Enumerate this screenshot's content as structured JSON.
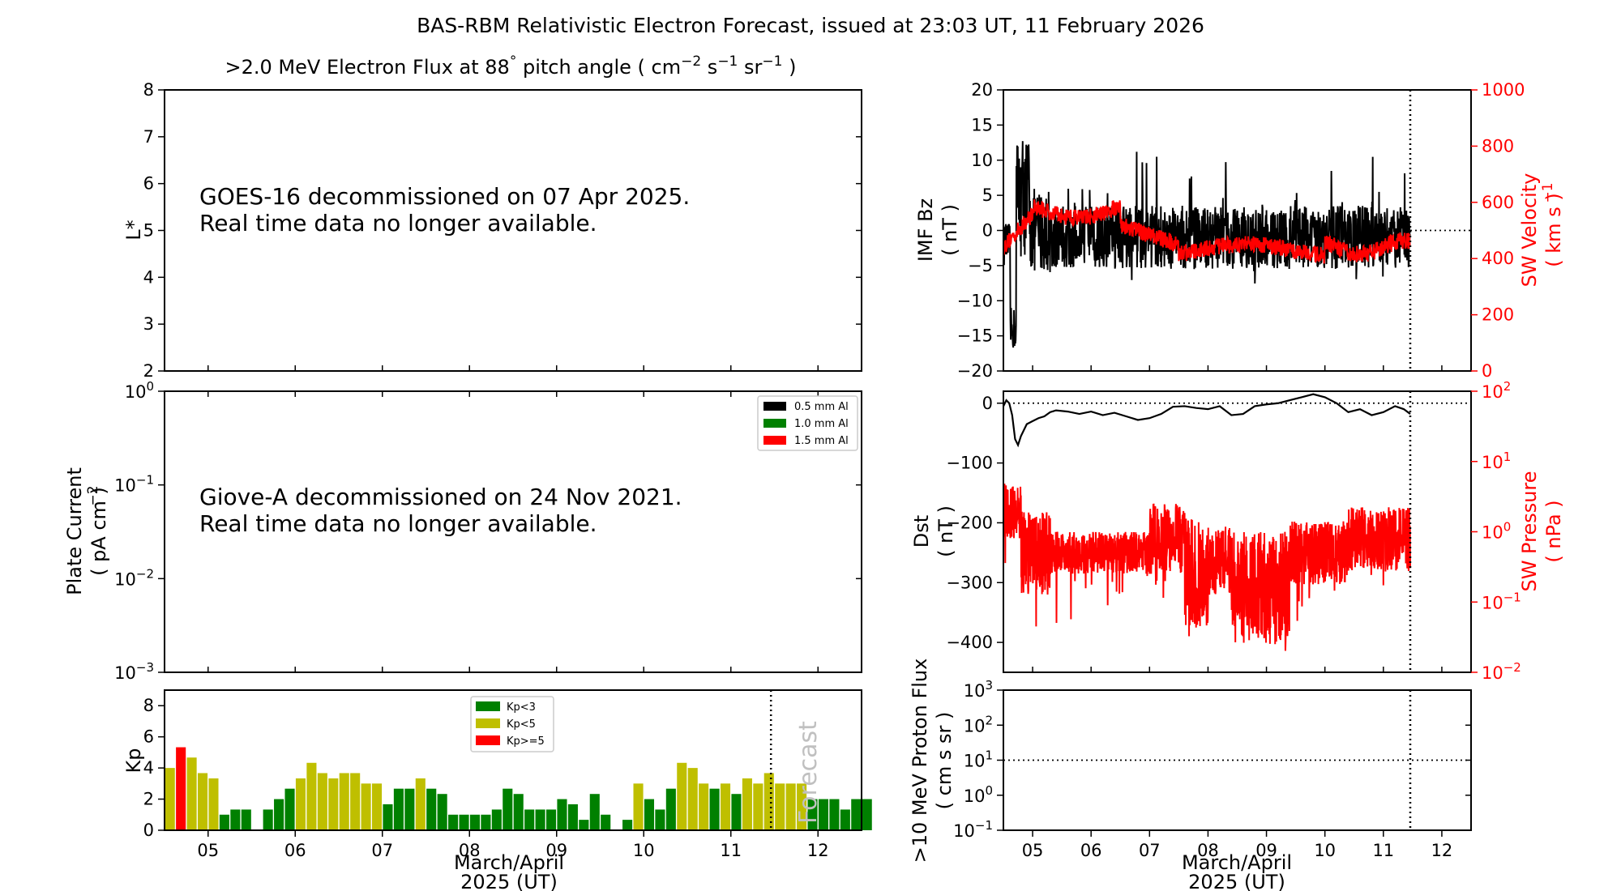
{
  "title": "BAS-RBM Relativistic Electron Forecast, issued at 23:03 UT, 11 February 2026",
  "colors": {
    "black": "#000000",
    "red": "#ff0000",
    "green": "#008000",
    "yellow": "#bfbf00",
    "gray": "#c0c0c0"
  },
  "chart_data": [
    {
      "id": "flux",
      "type": "heatmap",
      "title": ">2.0 MeV Electron Flux at 88 pitch angle ( cm s sr )",
      "title_parts": {
        "main": ">2.0 MeV Electron Flux at 88",
        "deg": "°",
        "pitch": "pitch angle ( cm",
        "e1": "−2",
        "s": "s",
        "e2": "−1",
        "sr": "sr",
        "e3": "−1",
        "end": ")"
      },
      "ylabel": "L*",
      "ylim": [
        2,
        8
      ],
      "yticks": [
        "2",
        "3",
        "4",
        "5",
        "6",
        "7",
        "8"
      ],
      "message": [
        "GOES-16 decommissioned on 07 Apr 2025.",
        "Real time data no longer available."
      ]
    },
    {
      "id": "plate",
      "type": "line",
      "ylabel": [
        "Plate Current",
        "( pA cm   )"
      ],
      "ylabel_exp": "−2",
      "yscale": "log",
      "ylim": [
        0.001,
        1
      ],
      "yticks": [
        {
          "base": "10",
          "exp": "0"
        },
        {
          "base": "10",
          "exp": "−1"
        },
        {
          "base": "10",
          "exp": "−2"
        },
        {
          "base": "10",
          "exp": "−3"
        }
      ],
      "legend": [
        "0.5 mm Al",
        "1.0 mm Al",
        "1.5 mm Al"
      ],
      "legend_colors": [
        "#000000",
        "#008000",
        "#ff0000"
      ],
      "message": [
        "Giove-A decommissioned on 24 Nov 2021.",
        "Real time data no longer available."
      ]
    },
    {
      "id": "kp",
      "type": "bar",
      "ylabel": "Kp",
      "ylim": [
        0,
        9
      ],
      "yticks": [
        "0",
        "2",
        "4",
        "6",
        "8"
      ],
      "xlim": [
        4.5,
        12.5
      ],
      "xticks": [
        "05",
        "06",
        "07",
        "08",
        "09",
        "10",
        "11",
        "12"
      ],
      "xlabel": [
        "March/April",
        "2025 (UT)"
      ],
      "forecast_start": 11.46,
      "forecast_label": "Forecast",
      "legend": [
        "Kp<3",
        "Kp<5",
        "Kp>=5"
      ],
      "bar_width": 0.125,
      "values": [
        4.0,
        5.33,
        4.67,
        3.67,
        3.33,
        1.0,
        1.33,
        1.33,
        0,
        1.33,
        2.0,
        2.67,
        3.33,
        4.33,
        3.67,
        3.33,
        3.67,
        3.67,
        3.0,
        3.0,
        1.67,
        2.67,
        2.67,
        3.33,
        2.67,
        2.33,
        1.0,
        1.0,
        1.0,
        1.0,
        1.33,
        2.67,
        2.33,
        1.33,
        1.33,
        1.33,
        2.0,
        1.67,
        0.67,
        2.33,
        1.0,
        0,
        0.67,
        3.0,
        2.0,
        1.33,
        2.67,
        4.33,
        4.0,
        3.0,
        2.67,
        3.0,
        2.33,
        3.33,
        3.0,
        3.67,
        3.0,
        3.0,
        3.0,
        2.0,
        2.0,
        2.0,
        1.33,
        2.0,
        2.0
      ]
    },
    {
      "id": "imf",
      "type": "line",
      "ylabel": [
        "IMF Bz",
        "( nT )"
      ],
      "ylim": [
        -20,
        20
      ],
      "yticks": [
        "−20",
        "−15",
        "−10",
        "−5",
        "0",
        "5",
        "10",
        "15",
        "20"
      ],
      "ylabel2": [
        "SW Velocity",
        "( km s   )"
      ],
      "ylabel2_exp": "−1",
      "ylim2": [
        0,
        1000
      ],
      "yticks2": [
        "0",
        "200",
        "400",
        "600",
        "800",
        "1000"
      ],
      "xlim": [
        4.5,
        12.5
      ],
      "now": 11.46
    },
    {
      "id": "dst",
      "type": "line",
      "ylabel": [
        "Dst",
        "( nT )"
      ],
      "ylim": [
        -450,
        20
      ],
      "yticks": [
        "−400",
        "−300",
        "−200",
        "−100",
        "0"
      ],
      "ylabel2": [
        "SW Pressure",
        "( nPa )"
      ],
      "yscale2": "log",
      "ylim2": [
        0.01,
        100
      ],
      "yticks2": [
        {
          "base": "10",
          "exp": "2"
        },
        {
          "base": "10",
          "exp": "1"
        },
        {
          "base": "10",
          "exp": "0"
        },
        {
          "base": "10",
          "exp": "−1"
        },
        {
          "base": "10",
          "exp": "−2"
        }
      ],
      "xlim": [
        4.5,
        12.5
      ],
      "now": 11.46,
      "dst_series": [
        [
          4.5,
          -5
        ],
        [
          4.55,
          5
        ],
        [
          4.6,
          0
        ],
        [
          4.65,
          -20
        ],
        [
          4.7,
          -60
        ],
        [
          4.75,
          -70
        ],
        [
          4.8,
          -55
        ],
        [
          4.85,
          -45
        ],
        [
          4.9,
          -35
        ],
        [
          5.0,
          -30
        ],
        [
          5.1,
          -25
        ],
        [
          5.2,
          -22
        ],
        [
          5.3,
          -15
        ],
        [
          5.4,
          -12
        ],
        [
          5.6,
          -14
        ],
        [
          5.8,
          -18
        ],
        [
          6.0,
          -14
        ],
        [
          6.2,
          -20
        ],
        [
          6.4,
          -16
        ],
        [
          6.6,
          -22
        ],
        [
          6.8,
          -28
        ],
        [
          7.0,
          -25
        ],
        [
          7.2,
          -18
        ],
        [
          7.4,
          -6
        ],
        [
          7.6,
          -5
        ],
        [
          7.8,
          -8
        ],
        [
          8.0,
          -10
        ],
        [
          8.2,
          -5
        ],
        [
          8.4,
          -20
        ],
        [
          8.6,
          -18
        ],
        [
          8.8,
          -5
        ],
        [
          9.0,
          -2
        ],
        [
          9.2,
          0
        ],
        [
          9.4,
          5
        ],
        [
          9.6,
          10
        ],
        [
          9.8,
          15
        ],
        [
          10.0,
          10
        ],
        [
          10.2,
          0
        ],
        [
          10.4,
          -15
        ],
        [
          10.6,
          -10
        ],
        [
          10.8,
          -20
        ],
        [
          11.0,
          -15
        ],
        [
          11.2,
          -5
        ],
        [
          11.35,
          -10
        ],
        [
          11.46,
          -18
        ]
      ]
    },
    {
      "id": "proton",
      "type": "line",
      "ylabel": [
        ">10 MeV Proton Flux",
        "( cm  s   sr   )"
      ],
      "yscale": "log",
      "ylim": [
        0.1,
        1000
      ],
      "yticks": [
        {
          "base": "10",
          "exp": "3"
        },
        {
          "base": "10",
          "exp": "2"
        },
        {
          "base": "10",
          "exp": "1"
        },
        {
          "base": "10",
          "exp": "0"
        },
        {
          "base": "10",
          "exp": "−1"
        }
      ],
      "threshold": 10,
      "xlim": [
        4.5,
        12.5
      ],
      "xticks": [
        "05",
        "06",
        "07",
        "08",
        "09",
        "10",
        "11",
        "12"
      ],
      "xlabel": [
        "March/April",
        "2025 (UT)"
      ],
      "now": 11.46
    }
  ]
}
